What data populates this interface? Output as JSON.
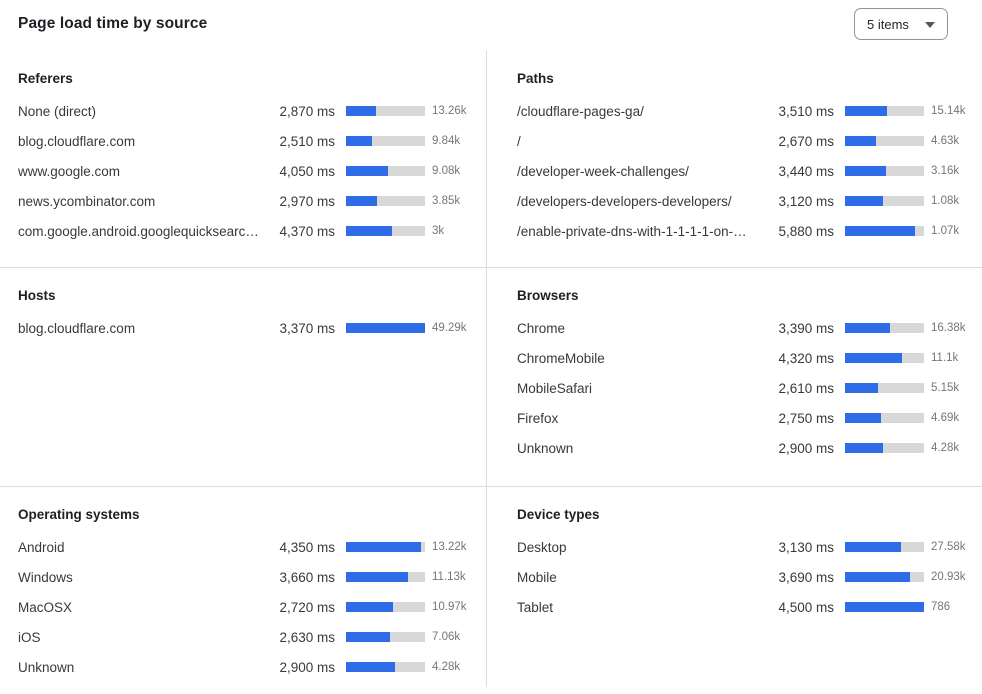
{
  "header": {
    "title": "Page load time by source",
    "items_dropdown": {
      "value": "5 items"
    }
  },
  "colors": {
    "accent": "#2f6de8",
    "track": "#d8d8d8",
    "divider": "#dadcdd",
    "label_text": "#36393f",
    "count_text": "#71777e"
  },
  "chart_data": {
    "type": "bar",
    "title": "Page load time by source",
    "unit": "ms",
    "legend_note": "each row: label, load time (ms), horizontal bar fill %, request count",
    "sections": [
      {
        "title": "Referers",
        "rows": [
          {
            "label": "None (direct)",
            "ms": 2870,
            "ms_display": "2,870 ms",
            "count": "13.26k",
            "bar_pct": 38
          },
          {
            "label": "blog.cloudflare.com",
            "ms": 2510,
            "ms_display": "2,510 ms",
            "count": "9.84k",
            "bar_pct": 33
          },
          {
            "label": "www.google.com",
            "ms": 4050,
            "ms_display": "4,050 ms",
            "count": "9.08k",
            "bar_pct": 53.5
          },
          {
            "label": "news.ycombinator.com",
            "ms": 2970,
            "ms_display": "2,970 ms",
            "count": "3.85k",
            "bar_pct": 39
          },
          {
            "label": "com.google.android.googlequicksearc…",
            "ms": 4370,
            "ms_display": "4,370 ms",
            "count": "3k",
            "bar_pct": 58.5
          }
        ]
      },
      {
        "title": "Paths",
        "rows": [
          {
            "label": "/cloudflare-pages-ga/",
            "ms": 3510,
            "ms_display": "3,510 ms",
            "count": "15.14k",
            "bar_pct": 53.5
          },
          {
            "label": "/",
            "ms": 2670,
            "ms_display": "2,670 ms",
            "count": "4.63k",
            "bar_pct": 39.5
          },
          {
            "label": "/developer-week-challenges/",
            "ms": 3440,
            "ms_display": "3,440 ms",
            "count": "3.16k",
            "bar_pct": 52
          },
          {
            "label": "/developers-developers-developers/",
            "ms": 3120,
            "ms_display": "3,120 ms",
            "count": "1.08k",
            "bar_pct": 47.5
          },
          {
            "label": "/enable-private-dns-with-1-1-1-1-on-…",
            "ms": 5880,
            "ms_display": "5,880 ms",
            "count": "1.07k",
            "bar_pct": 89
          }
        ]
      },
      {
        "title": "Hosts",
        "rows": [
          {
            "label": "blog.cloudflare.com",
            "ms": 3370,
            "ms_display": "3,370 ms",
            "count": "49.29k",
            "bar_pct": 100
          }
        ]
      },
      {
        "title": "Browsers",
        "rows": [
          {
            "label": "Chrome",
            "ms": 3390,
            "ms_display": "3,390 ms",
            "count": "16.38k",
            "bar_pct": 56.5
          },
          {
            "label": "ChromeMobile",
            "ms": 4320,
            "ms_display": "4,320 ms",
            "count": "11.1k",
            "bar_pct": 72
          },
          {
            "label": "MobileSafari",
            "ms": 2610,
            "ms_display": "2,610 ms",
            "count": "5.15k",
            "bar_pct": 42
          },
          {
            "label": "Firefox",
            "ms": 2750,
            "ms_display": "2,750 ms",
            "count": "4.69k",
            "bar_pct": 45
          },
          {
            "label": "Unknown",
            "ms": 2900,
            "ms_display": "2,900 ms",
            "count": "4.28k",
            "bar_pct": 48
          }
        ]
      },
      {
        "title": "Operating systems",
        "rows": [
          {
            "label": "Android",
            "ms": 4350,
            "ms_display": "4,350 ms",
            "count": "13.22k",
            "bar_pct": 94.5
          },
          {
            "label": "Windows",
            "ms": 3660,
            "ms_display": "3,660 ms",
            "count": "11.13k",
            "bar_pct": 78
          },
          {
            "label": "MacOSX",
            "ms": 2720,
            "ms_display": "2,720 ms",
            "count": "10.97k",
            "bar_pct": 59
          },
          {
            "label": "iOS",
            "ms": 2630,
            "ms_display": "2,630 ms",
            "count": "7.06k",
            "bar_pct": 56
          },
          {
            "label": "Unknown",
            "ms": 2900,
            "ms_display": "2,900 ms",
            "count": "4.28k",
            "bar_pct": 62
          }
        ]
      },
      {
        "title": "Device types",
        "rows": [
          {
            "label": "Desktop",
            "ms": 3130,
            "ms_display": "3,130 ms",
            "count": "27.58k",
            "bar_pct": 70.5
          },
          {
            "label": "Mobile",
            "ms": 3690,
            "ms_display": "3,690 ms",
            "count": "20.93k",
            "bar_pct": 82.5
          },
          {
            "label": "Tablet",
            "ms": 4500,
            "ms_display": "4,500 ms",
            "count": "786",
            "bar_pct": 100
          }
        ]
      }
    ]
  }
}
